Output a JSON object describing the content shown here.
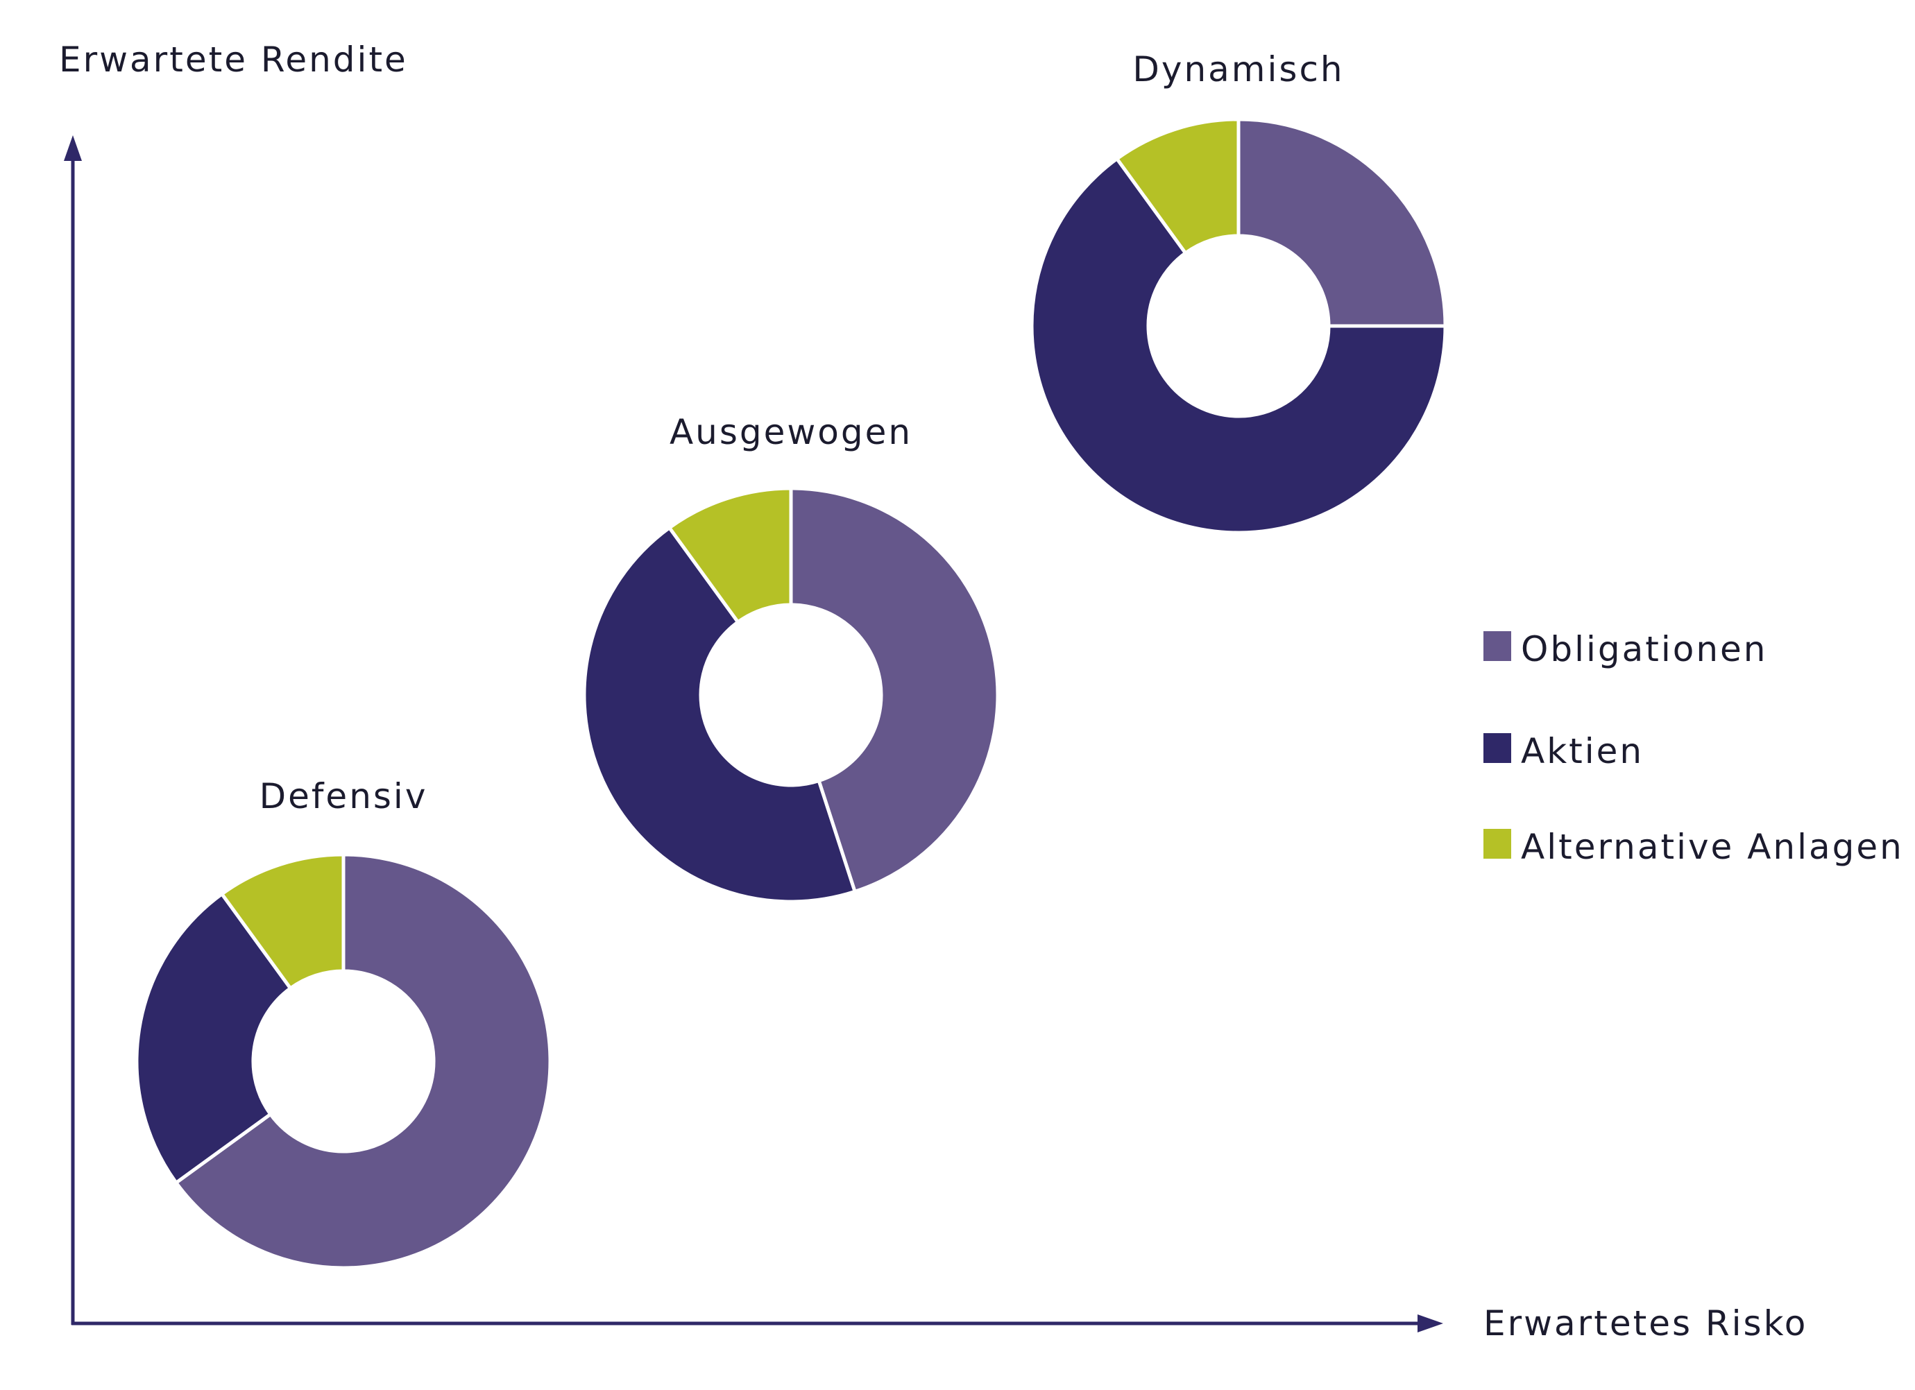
{
  "chart_data": {
    "type": "pie",
    "variant": "donut",
    "title": "",
    "ylabel": "Erwartete Rendite",
    "xlabel": "Erwartetes Risko",
    "legend_position": "right",
    "categories": [
      "Obligationen",
      "Aktien",
      "Alternative Anlagen"
    ],
    "colors": {
      "Obligationen": "#65578b",
      "Aktien": "#2f2868",
      "Alternative Anlagen": "#b5c126",
      "axis": "#2f2868"
    },
    "series": [
      {
        "name": "Defensiv",
        "values": [
          65,
          25,
          10
        ]
      },
      {
        "name": "Ausgewogen",
        "values": [
          45,
          45,
          10
        ]
      },
      {
        "name": "Dynamisch",
        "values": [
          25,
          65,
          10
        ]
      }
    ]
  }
}
